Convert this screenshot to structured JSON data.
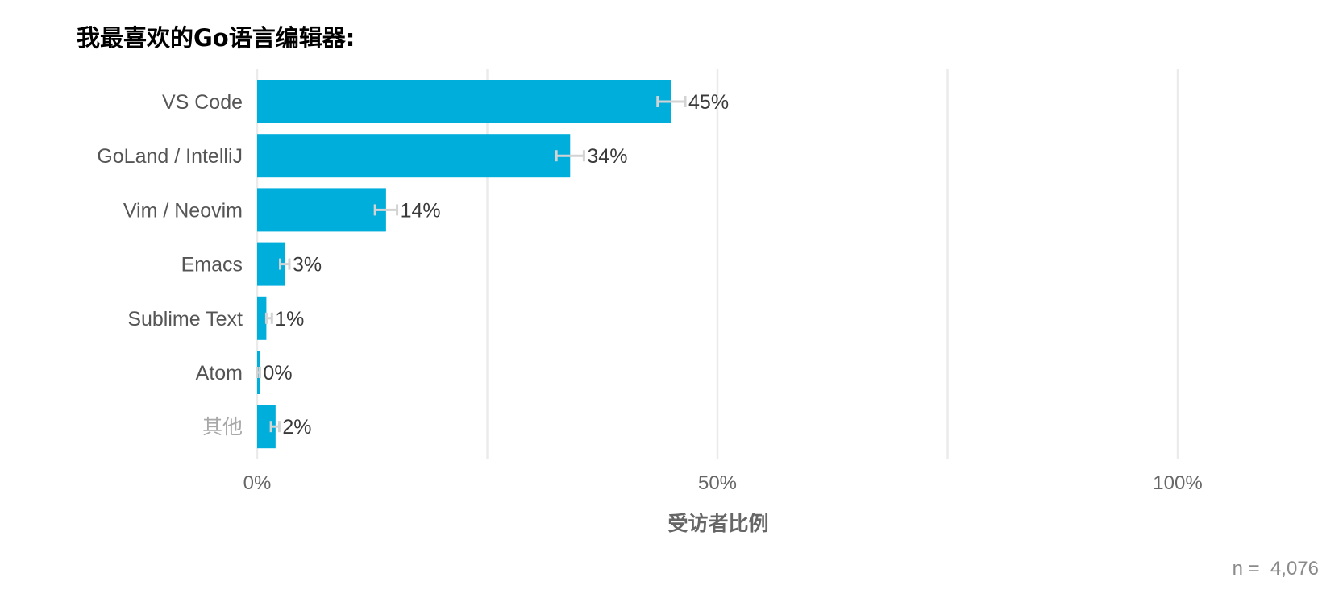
{
  "chart_data": {
    "type": "bar",
    "orientation": "horizontal",
    "title": "我最喜欢的Go语言编辑器:",
    "categories": [
      "VS Code",
      "GoLand / IntelliJ",
      "Vim / Neovim",
      "Emacs",
      "Sublime Text",
      "Atom",
      "其他"
    ],
    "values": [
      45,
      34,
      14,
      3,
      1,
      0,
      2
    ],
    "value_labels": [
      "45%",
      "34%",
      "14%",
      "3%",
      "1%",
      "0%",
      "2%"
    ],
    "error_intervals": [
      [
        43.5,
        46.5
      ],
      [
        32.5,
        35.5
      ],
      [
        12.8,
        15.2
      ],
      [
        2.5,
        3.5
      ],
      [
        1.0,
        1.6
      ],
      [
        0,
        0.3
      ],
      [
        1.5,
        2.4
      ]
    ],
    "xlabel": "受访者比例",
    "ylabel": "",
    "xlim": [
      0,
      117
    ],
    "x_ticks": [
      0,
      50,
      100
    ],
    "x_tick_labels": [
      "0%",
      "50%",
      "100%"
    ],
    "minor_gridlines": [
      25,
      75
    ],
    "grid": true,
    "legend": "none",
    "colors": {
      "bar": "#00AEDB",
      "error_bar": "#D3D3D3",
      "grid": "#EBEBEB",
      "category_label": "#555555",
      "other_label": "#A8A8A8",
      "axis_text": "#666666"
    }
  },
  "footer": {
    "n_label": "n =  4,076"
  }
}
